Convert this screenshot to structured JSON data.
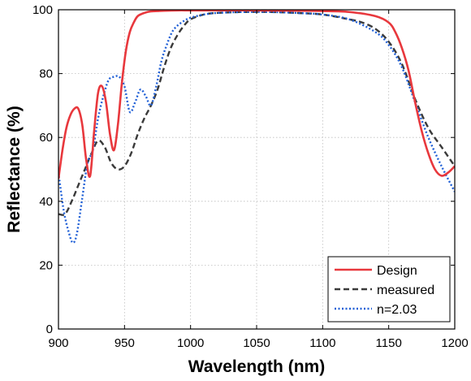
{
  "chart_data": {
    "type": "line",
    "title": "",
    "xlabel": "Wavelength (nm)",
    "ylabel": "Reflectance (%)",
    "xlim": [
      900,
      1200
    ],
    "ylim": [
      0,
      100
    ],
    "x_ticks": [
      "900",
      "950",
      "1000",
      "1050",
      "1100",
      "1150",
      "1200"
    ],
    "y_ticks": [
      "0",
      "20",
      "40",
      "60",
      "80",
      "100"
    ],
    "grid": true,
    "legend_position": "bottom-right",
    "series": [
      {
        "name": "Design",
        "color": "#e8383d",
        "style": "solid",
        "x": [
          900,
          903,
          906,
          909,
          912,
          915,
          918,
          921,
          924,
          927,
          930,
          933,
          936,
          939,
          942,
          945,
          948,
          951,
          954,
          957,
          960,
          965,
          970,
          975,
          980,
          990,
          1000,
          1020,
          1050,
          1080,
          1100,
          1120,
          1140,
          1150,
          1155,
          1160,
          1165,
          1170,
          1175,
          1180,
          1185,
          1190,
          1195,
          1200
        ],
        "y": [
          47,
          56,
          63,
          67,
          69,
          69,
          64,
          53,
          48,
          62,
          74,
          76,
          71,
          61,
          56,
          64,
          77,
          87,
          93,
          96,
          98,
          99,
          99.5,
          99.6,
          99.7,
          99.8,
          99.8,
          99.8,
          99.8,
          99.7,
          99.6,
          99.3,
          98,
          96,
          93,
          88,
          81,
          71,
          62,
          55,
          50,
          48,
          49,
          51
        ]
      },
      {
        "name": "measured",
        "color": "#3a3a3a",
        "style": "dashed",
        "x": [
          900,
          905,
          910,
          915,
          920,
          925,
          930,
          935,
          940,
          945,
          950,
          955,
          960,
          965,
          970,
          975,
          980,
          985,
          990,
          995,
          1000,
          1010,
          1020,
          1040,
          1060,
          1080,
          1100,
          1120,
          1130,
          1140,
          1150,
          1160,
          1170,
          1180,
          1190,
          1200
        ],
        "y": [
          36,
          36,
          40,
          45,
          50,
          55,
          59,
          57,
          52,
          50,
          51,
          55,
          61,
          66,
          70,
          75,
          82,
          88,
          92,
          95,
          97,
          98.5,
          99,
          99.3,
          99.3,
          99,
          98.5,
          97,
          96,
          94,
          90,
          83,
          72,
          63,
          57,
          51
        ]
      },
      {
        "name": "n=2.03",
        "color": "#1f5fd6",
        "style": "dotted",
        "x": [
          900,
          904,
          908,
          911,
          914,
          918,
          922,
          926,
          930,
          934,
          938,
          942,
          946,
          950,
          954,
          958,
          962,
          966,
          970,
          974,
          978,
          982,
          986,
          990,
          995,
          1000,
          1010,
          1020,
          1040,
          1060,
          1080,
          1100,
          1120,
          1140,
          1150,
          1160,
          1170,
          1180,
          1190,
          1200
        ],
        "y": [
          49,
          37,
          30,
          27,
          30,
          41,
          52,
          56,
          66,
          73,
          78,
          79,
          79,
          76,
          68,
          71,
          75,
          73,
          70,
          76,
          84,
          89,
          93,
          95,
          96.5,
          97.5,
          98.5,
          99,
          99.3,
          99.3,
          99,
          98.5,
          97,
          93,
          89,
          82,
          71,
          60,
          51,
          43
        ]
      }
    ]
  }
}
